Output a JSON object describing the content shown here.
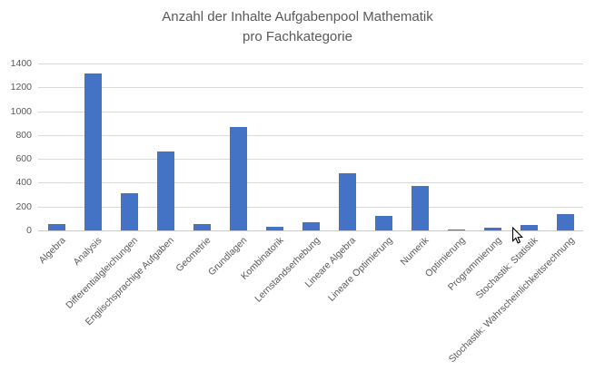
{
  "header": {
    "title_line1": "Anzahl der Inhalte Aufgabenpool Mathematik",
    "title_line2": "pro Fachkategorie"
  },
  "colors": {
    "bar": "#4472C4",
    "gridline": "#D9D9D9",
    "axis_line": "#C9C9C9",
    "text": "#595959"
  },
  "chart_data": {
    "type": "bar",
    "title": "Anzahl der Inhalte Aufgabenpool Mathematik pro Fachkategorie",
    "categories": [
      "Algebra",
      "Analysis",
      "Differentialgleichungen",
      "Englischsprachige Aufgaben",
      "Geometrie",
      "Grundlagen",
      "Kombinatorik",
      "Lernstandserhebung",
      "Lineare Algebra",
      "Lineare Optimierung",
      "Numerik",
      "Optimierung",
      "Programmierung",
      "Stochastik: Statistik",
      "Stochastik: Wahrscheinlichkeitsrechnung"
    ],
    "values": [
      50,
      1315,
      310,
      665,
      55,
      870,
      30,
      70,
      480,
      120,
      375,
      10,
      20,
      45,
      135
    ],
    "xlabel": "",
    "ylabel": "",
    "ylim": [
      0,
      1400
    ],
    "yticks": [
      0,
      200,
      400,
      600,
      800,
      1000,
      1200,
      1400
    ],
    "grid": true,
    "legend": false,
    "bar_color": "#4472C4",
    "x_label_rotation_deg": 45
  }
}
